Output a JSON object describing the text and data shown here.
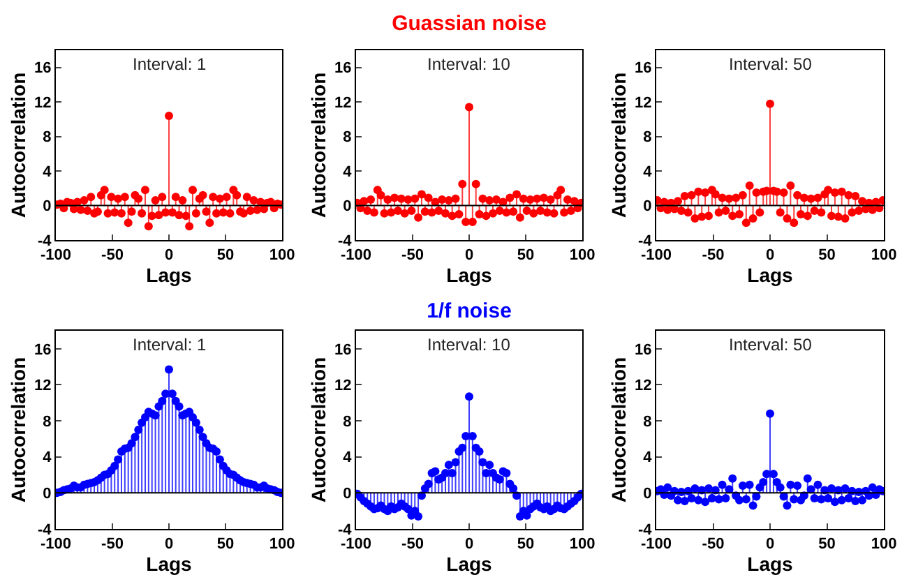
{
  "chart_data": [
    {
      "type": "lollipop",
      "annotations": [
        "Interval: 1"
      ],
      "ref_lines": [
        {
          "axis": "y",
          "value": 0,
          "color": "#000000"
        }
      ],
      "xlabel": "Lags",
      "ylabel": "Autocorrelation",
      "color": "#ff0000",
      "marker": "circle",
      "xlim": [
        -100,
        100
      ],
      "xticks": [
        -100,
        -50,
        0,
        50,
        100
      ],
      "ylim": [
        -4,
        18
      ],
      "yticks": [
        -4,
        0,
        4,
        8,
        12,
        16
      ],
      "grid": false,
      "x": [
        -99,
        -96,
        -93,
        -90,
        -87,
        -84,
        -81,
        -78,
        -75,
        -72,
        -69,
        -66,
        -63,
        -60,
        -57,
        -54,
        -51,
        -48,
        -45,
        -42,
        -39,
        -36,
        -33,
        -30,
        -27,
        -24,
        -21,
        -18,
        -15,
        -12,
        -9,
        -6,
        -3,
        0,
        3,
        6,
        9,
        12,
        15,
        18,
        21,
        24,
        27,
        30,
        33,
        36,
        39,
        42,
        45,
        48,
        51,
        54,
        57,
        60,
        63,
        66,
        69,
        72,
        75,
        78,
        81,
        84,
        87,
        90,
        93,
        96,
        99
      ],
      "values": [
        0.1,
        0.2,
        -0.3,
        0.4,
        0.3,
        -0.4,
        0.4,
        -0.5,
        0.6,
        -0.6,
        1.0,
        -0.9,
        -0.7,
        1.2,
        1.8,
        -0.9,
        1.0,
        -0.8,
        0.8,
        -0.9,
        1.0,
        -2.0,
        -0.7,
        1.2,
        0.8,
        -0.9,
        1.8,
        -2.4,
        -1.2,
        0.6,
        -1.1,
        1.0,
        -0.8,
        10.4,
        -0.8,
        1.0,
        -1.1,
        0.6,
        -1.2,
        -2.4,
        1.8,
        -0.9,
        0.8,
        1.2,
        -0.7,
        -2.0,
        1.0,
        -0.9,
        0.8,
        -0.8,
        1.0,
        -0.9,
        1.8,
        1.2,
        -0.7,
        -0.9,
        1.0,
        -0.6,
        0.6,
        -0.5,
        0.4,
        -0.4,
        0.3,
        0.4,
        -0.3,
        0.2,
        0.1
      ]
    },
    {
      "type": "lollipop",
      "title": "Guassian noise",
      "annotations": [
        "Interval: 10"
      ],
      "ref_lines": [
        {
          "axis": "y",
          "value": 0,
          "color": "#000000"
        }
      ],
      "xlabel": "Lags",
      "ylabel": "Autocorrelation",
      "color": "#ff0000",
      "marker": "circle",
      "xlim": [
        -100,
        100
      ],
      "xticks": [
        -100,
        -50,
        0,
        50,
        100
      ],
      "ylim": [
        -4,
        18
      ],
      "yticks": [
        -4,
        0,
        4,
        8,
        12,
        16
      ],
      "grid": false,
      "x": [
        -99,
        -96,
        -93,
        -90,
        -87,
        -84,
        -81,
        -78,
        -75,
        -72,
        -69,
        -66,
        -63,
        -60,
        -57,
        -54,
        -51,
        -48,
        -45,
        -42,
        -39,
        -36,
        -33,
        -30,
        -27,
        -24,
        -21,
        -18,
        -15,
        -12,
        -9,
        -6,
        -3,
        0,
        3,
        6,
        9,
        12,
        15,
        18,
        21,
        24,
        27,
        30,
        33,
        36,
        39,
        42,
        45,
        48,
        51,
        54,
        57,
        60,
        63,
        66,
        69,
        72,
        75,
        78,
        81,
        84,
        87,
        90,
        93,
        96,
        99
      ],
      "values": [
        0.3,
        -0.3,
        0.5,
        -0.6,
        0.7,
        -0.8,
        1.8,
        1.2,
        -0.9,
        0.7,
        -0.8,
        0.9,
        -0.6,
        0.8,
        -0.9,
        0.7,
        -0.6,
        0.8,
        -1.4,
        1.3,
        -0.7,
        0.9,
        -0.8,
        0.4,
        -0.6,
        0.7,
        -0.9,
        0.6,
        -1.2,
        0.8,
        -1.0,
        2.5,
        -1.9,
        11.4,
        -1.9,
        2.5,
        -1.0,
        0.8,
        -1.2,
        0.6,
        -0.9,
        0.7,
        -0.6,
        0.4,
        -0.8,
        0.9,
        -0.7,
        1.3,
        -1.4,
        0.8,
        -0.6,
        0.7,
        -0.9,
        0.8,
        -0.6,
        0.9,
        -0.8,
        0.7,
        -0.9,
        1.2,
        1.8,
        -0.8,
        0.7,
        -0.6,
        0.5,
        -0.3,
        0.3
      ]
    },
    {
      "type": "lollipop",
      "annotations": [
        "Interval: 50"
      ],
      "ref_lines": [
        {
          "axis": "y",
          "value": 0,
          "color": "#000000"
        }
      ],
      "xlabel": "Lags",
      "ylabel": "Autocorrelation",
      "color": "#ff0000",
      "marker": "circle",
      "xlim": [
        -100,
        100
      ],
      "xticks": [
        -100,
        -50,
        0,
        50,
        100
      ],
      "ylim": [
        -4,
        18
      ],
      "yticks": [
        -4,
        0,
        4,
        8,
        12,
        16
      ],
      "grid": false,
      "x": [
        -99,
        -96,
        -93,
        -90,
        -87,
        -84,
        -81,
        -78,
        -75,
        -72,
        -69,
        -66,
        -63,
        -60,
        -57,
        -54,
        -51,
        -48,
        -45,
        -42,
        -39,
        -36,
        -33,
        -30,
        -27,
        -24,
        -21,
        -18,
        -15,
        -12,
        -9,
        -6,
        -3,
        0,
        3,
        6,
        9,
        12,
        15,
        18,
        21,
        24,
        27,
        30,
        33,
        36,
        39,
        42,
        45,
        48,
        51,
        54,
        57,
        60,
        63,
        66,
        69,
        72,
        75,
        78,
        81,
        84,
        87,
        90,
        93,
        96,
        99
      ],
      "values": [
        0.6,
        -0.3,
        0.4,
        -0.5,
        0.3,
        -0.4,
        0.5,
        -0.6,
        1.1,
        -0.8,
        1.2,
        -1.5,
        1.6,
        -1.3,
        1.5,
        -1.2,
        1.8,
        1.3,
        -0.8,
        0.9,
        -0.6,
        0.8,
        -1.2,
        0.9,
        -1.0,
        1.2,
        -2.0,
        2.3,
        -1.5,
        1.5,
        -0.8,
        1.6,
        1.7,
        11.8,
        1.7,
        1.6,
        -0.8,
        1.5,
        -1.5,
        2.3,
        -2.0,
        1.2,
        -1.0,
        0.9,
        -1.2,
        0.8,
        -0.6,
        0.9,
        -0.8,
        1.3,
        1.8,
        -1.2,
        1.5,
        -1.3,
        1.6,
        -1.5,
        1.2,
        -0.8,
        1.1,
        -0.6,
        0.5,
        -0.4,
        0.3,
        -0.5,
        0.4,
        -0.3,
        0.6
      ]
    },
    {
      "type": "lollipop",
      "annotations": [
        "Interval: 1"
      ],
      "ref_lines": [
        {
          "axis": "y",
          "value": 0,
          "color": "#000000"
        }
      ],
      "xlabel": "Lags",
      "ylabel": "Autocorrelation",
      "color": "#0000ff",
      "marker": "circle",
      "xlim": [
        -100,
        100
      ],
      "xticks": [
        -100,
        -50,
        0,
        50,
        100
      ],
      "ylim": [
        -4,
        18
      ],
      "yticks": [
        -4,
        0,
        4,
        8,
        12,
        16
      ],
      "grid": false,
      "x": [
        -99,
        -96,
        -93,
        -90,
        -87,
        -84,
        -81,
        -78,
        -75,
        -72,
        -69,
        -66,
        -63,
        -60,
        -57,
        -54,
        -51,
        -48,
        -45,
        -42,
        -39,
        -36,
        -33,
        -30,
        -27,
        -24,
        -21,
        -18,
        -15,
        -12,
        -9,
        -6,
        -3,
        0,
        3,
        6,
        9,
        12,
        15,
        18,
        21,
        24,
        27,
        30,
        33,
        36,
        39,
        42,
        45,
        48,
        51,
        54,
        57,
        60,
        63,
        66,
        69,
        72,
        75,
        78,
        81,
        84,
        87,
        90,
        93,
        96,
        99
      ],
      "values": [
        0.0,
        0.1,
        0.3,
        0.4,
        0.5,
        0.8,
        0.6,
        0.6,
        0.9,
        1.0,
        1.1,
        1.2,
        1.4,
        1.7,
        2.0,
        2.1,
        2.5,
        3.0,
        3.7,
        4.6,
        4.9,
        5.0,
        5.5,
        6.2,
        7.0,
        7.8,
        8.4,
        9.0,
        8.8,
        8.6,
        9.6,
        10.2,
        11.0,
        13.7,
        11.0,
        10.2,
        9.6,
        8.6,
        8.8,
        9.0,
        8.4,
        7.8,
        7.0,
        6.2,
        5.5,
        5.0,
        4.9,
        4.6,
        3.7,
        3.0,
        2.5,
        2.1,
        2.0,
        1.7,
        1.4,
        1.2,
        1.1,
        1.0,
        0.9,
        0.6,
        0.6,
        0.8,
        0.5,
        0.4,
        0.3,
        0.1,
        0.0
      ]
    },
    {
      "type": "lollipop",
      "title": "1/f noise",
      "annotations": [
        "Interval: 10"
      ],
      "ref_lines": [
        {
          "axis": "y",
          "value": 0,
          "color": "#000000"
        }
      ],
      "xlabel": "Lags",
      "ylabel": "Autocorrelation",
      "color": "#0000ff",
      "marker": "circle",
      "xlim": [
        -100,
        100
      ],
      "xticks": [
        -100,
        -50,
        0,
        50,
        100
      ],
      "ylim": [
        -4,
        18
      ],
      "yticks": [
        -4,
        0,
        4,
        8,
        12,
        16
      ],
      "grid": false,
      "x": [
        -99,
        -96,
        -93,
        -90,
        -87,
        -84,
        -81,
        -78,
        -75,
        -72,
        -69,
        -66,
        -63,
        -60,
        -57,
        -54,
        -51,
        -48,
        -45,
        -42,
        -39,
        -36,
        -33,
        -30,
        -27,
        -24,
        -21,
        -18,
        -15,
        -12,
        -9,
        -6,
        -3,
        0,
        3,
        6,
        9,
        12,
        15,
        18,
        21,
        24,
        27,
        30,
        33,
        36,
        39,
        42,
        45,
        48,
        51,
        54,
        57,
        60,
        63,
        66,
        69,
        72,
        75,
        78,
        81,
        84,
        87,
        90,
        93,
        96,
        99
      ],
      "values": [
        -0.1,
        -0.5,
        -0.9,
        -1.2,
        -1.5,
        -1.8,
        -1.7,
        -1.4,
        -1.8,
        -2.0,
        -1.5,
        -1.8,
        -1.6,
        -1.2,
        -1.5,
        -1.8,
        -2.5,
        -2.0,
        -2.6,
        -0.3,
        0.5,
        1.0,
        2.2,
        2.4,
        1.5,
        1.7,
        2.2,
        3.1,
        2.2,
        3.4,
        4.6,
        5.0,
        6.3,
        10.7,
        6.3,
        5.0,
        4.6,
        3.4,
        2.2,
        3.1,
        2.2,
        1.7,
        1.5,
        2.4,
        2.2,
        1.0,
        0.5,
        -0.3,
        -2.6,
        -2.0,
        -2.5,
        -1.8,
        -1.5,
        -1.2,
        -1.6,
        -1.8,
        -1.5,
        -2.0,
        -1.8,
        -1.4,
        -1.7,
        -1.8,
        -1.5,
        -1.2,
        -0.9,
        -0.5,
        -0.1
      ]
    },
    {
      "type": "lollipop",
      "annotations": [
        "Interval: 50"
      ],
      "ref_lines": [
        {
          "axis": "y",
          "value": 0,
          "color": "#000000"
        }
      ],
      "xlabel": "Lags",
      "ylabel": "Autocorrelation",
      "color": "#0000ff",
      "marker": "circle",
      "xlim": [
        -100,
        100
      ],
      "xticks": [
        -100,
        -50,
        0,
        50,
        100
      ],
      "ylim": [
        -4,
        18
      ],
      "yticks": [
        -4,
        0,
        4,
        8,
        12,
        16
      ],
      "grid": false,
      "x": [
        -99,
        -96,
        -93,
        -90,
        -87,
        -84,
        -81,
        -78,
        -75,
        -72,
        -69,
        -66,
        -63,
        -60,
        -57,
        -54,
        -51,
        -48,
        -45,
        -42,
        -39,
        -36,
        -33,
        -30,
        -27,
        -24,
        -21,
        -18,
        -15,
        -12,
        -9,
        -6,
        -3,
        0,
        3,
        6,
        9,
        12,
        15,
        18,
        21,
        24,
        27,
        30,
        33,
        36,
        39,
        42,
        45,
        48,
        51,
        54,
        57,
        60,
        63,
        66,
        69,
        72,
        75,
        78,
        81,
        84,
        87,
        90,
        93,
        96,
        99
      ],
      "values": [
        0.2,
        0.4,
        -0.2,
        0.6,
        -0.3,
        0.2,
        -0.8,
        0.1,
        -0.9,
        0.2,
        -0.6,
        0.5,
        -0.8,
        0.3,
        -1.0,
        0.5,
        -0.6,
        0.3,
        -0.7,
        0.9,
        -0.6,
        0.4,
        1.6,
        -0.3,
        -0.8,
        0.8,
        -0.7,
        0.9,
        -1.4,
        -0.4,
        0.6,
        1.2,
        2.1,
        8.8,
        2.1,
        1.2,
        0.6,
        -0.4,
        -1.4,
        0.9,
        -0.7,
        0.8,
        -0.8,
        -0.3,
        1.6,
        0.4,
        -0.6,
        0.9,
        -0.7,
        0.3,
        -0.6,
        0.5,
        -1.0,
        0.3,
        -0.8,
        0.5,
        -0.6,
        0.2,
        -0.9,
        0.1,
        -0.8,
        0.2,
        -0.3,
        0.6,
        -0.2,
        0.4,
        0.2
      ]
    }
  ]
}
